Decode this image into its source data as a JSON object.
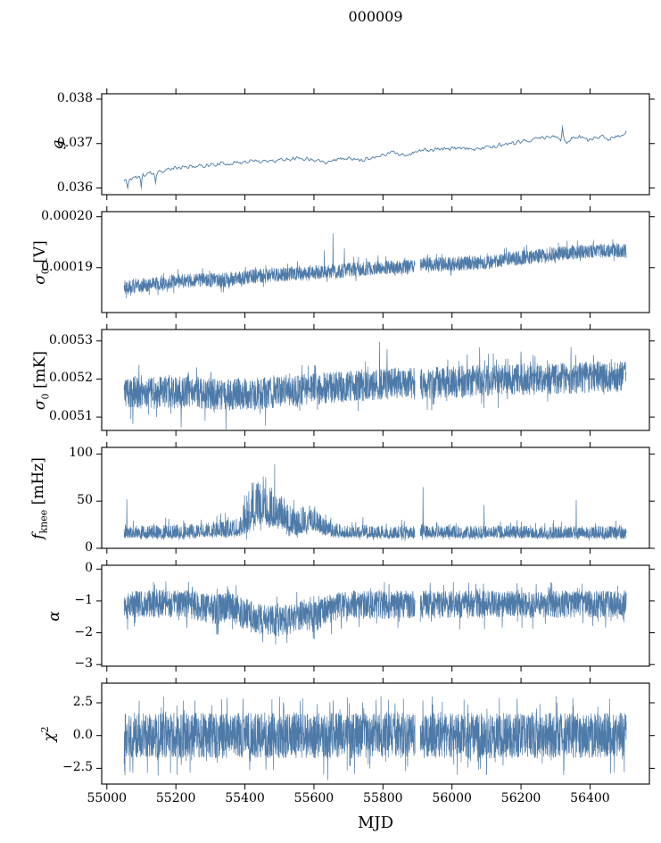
{
  "chart_data": {
    "type": "line",
    "title": "000009",
    "xlabel": "MJD",
    "note": "6 stacked time-series panels sharing MJD x-axis; dense noisy traces encoded as trend + noise envelope + spikes, values estimated from pixels",
    "line_color": "#4d7aa8",
    "axis_color": "#000000",
    "xlim": [
      54985,
      56572
    ],
    "x_data_range": [
      55050,
      56505
    ],
    "xticks": [
      {
        "v": 55000,
        "label": "55000"
      },
      {
        "v": 55200,
        "label": "55200"
      },
      {
        "v": 55400,
        "label": "55400"
      },
      {
        "v": 55600,
        "label": "55600"
      },
      {
        "v": 55800,
        "label": "55800"
      },
      {
        "v": 56000,
        "label": "56000"
      },
      {
        "v": 56200,
        "label": "56200"
      },
      {
        "v": 56400,
        "label": "56400"
      }
    ],
    "gap_mjd": [
      55893,
      55908
    ],
    "panels": [
      {
        "name": "g",
        "ylabel": {
          "var": "g",
          "sub": "",
          "sup": "",
          "unit": ""
        },
        "ylim": [
          0.03585,
          0.03812
        ],
        "yticks": [
          {
            "v": 0.038,
            "label": "0.038"
          },
          {
            "v": 0.037,
            "label": "0.037"
          },
          {
            "v": 0.036,
            "label": "0.036"
          }
        ],
        "seed": 11,
        "n_points": 560,
        "line_width": 0.9,
        "smooth": true,
        "gap": false,
        "tail_prob": 0.06,
        "asym": [
          1,
          1
        ],
        "trend": [
          [
            55050,
            0.03615
          ],
          [
            55080,
            0.03624
          ],
          [
            55130,
            0.03634
          ],
          [
            55180,
            0.03642
          ],
          [
            55240,
            0.03648
          ],
          [
            55300,
            0.03652
          ],
          [
            55360,
            0.03656
          ],
          [
            55420,
            0.0366
          ],
          [
            55480,
            0.03662
          ],
          [
            55540,
            0.03668
          ],
          [
            55600,
            0.03665
          ],
          [
            55640,
            0.0366
          ],
          [
            55680,
            0.03667
          ],
          [
            55730,
            0.03664
          ],
          [
            55780,
            0.0367
          ],
          [
            55830,
            0.03682
          ],
          [
            55860,
            0.03672
          ],
          [
            55900,
            0.03684
          ],
          [
            55950,
            0.03686
          ],
          [
            56000,
            0.0369
          ],
          [
            56050,
            0.03687
          ],
          [
            56100,
            0.03692
          ],
          [
            56150,
            0.03696
          ],
          [
            56200,
            0.03702
          ],
          [
            56250,
            0.03712
          ],
          [
            56300,
            0.03716
          ],
          [
            56330,
            0.03702
          ],
          [
            56360,
            0.03716
          ],
          [
            56400,
            0.0371
          ],
          [
            56440,
            0.03716
          ],
          [
            56470,
            0.03712
          ],
          [
            56505,
            0.03724
          ]
        ],
        "noise_env": [
          [
            55050,
            0.0001
          ],
          [
            55120,
            7e-05
          ],
          [
            55300,
            6e-05
          ],
          [
            56505,
            6e-05
          ]
        ],
        "spikes": [
          [
            55060,
            0.036
          ],
          [
            55100,
            0.03602
          ],
          [
            55140,
            0.03612
          ],
          [
            56320,
            0.03736
          ]
        ]
      },
      {
        "name": "sigma0_V",
        "ylabel": {
          "var": "σ",
          "sub": "0",
          "sup": "",
          "unit": " [V]"
        },
        "ylim": [
          0.0001812,
          0.000201
        ],
        "yticks": [
          {
            "v": 0.0002,
            "label": "0.00020"
          },
          {
            "v": 0.00019,
            "label": "0.00019"
          }
        ],
        "seed": 22,
        "n_points": 2600,
        "line_width": 0.7,
        "smooth": false,
        "gap": true,
        "tail_prob": 0.05,
        "asym": [
          1,
          1.15
        ],
        "trend": [
          [
            55050,
            0.0001862
          ],
          [
            55120,
            0.0001866
          ],
          [
            55200,
            0.0001872
          ],
          [
            55280,
            0.0001876
          ],
          [
            55340,
            0.0001874
          ],
          [
            55420,
            0.0001882
          ],
          [
            55500,
            0.0001886
          ],
          [
            55560,
            0.0001888
          ],
          [
            55640,
            0.0001891
          ],
          [
            55720,
            0.0001896
          ],
          [
            55800,
            0.0001899
          ],
          [
            55860,
            0.00019
          ],
          [
            55910,
            0.0001906
          ],
          [
            55980,
            0.0001906
          ],
          [
            56060,
            0.0001908
          ],
          [
            56120,
            0.0001911
          ],
          [
            56160,
            0.0001917
          ],
          [
            56220,
            0.000192
          ],
          [
            56280,
            0.0001924
          ],
          [
            56340,
            0.0001929
          ],
          [
            56400,
            0.0001932
          ],
          [
            56505,
            0.0001932
          ]
        ],
        "noise_env": [
          [
            55050,
            1.3e-06
          ],
          [
            56505,
            1.3e-06
          ]
        ],
        "spikes": [
          [
            55630,
            0.0001934
          ],
          [
            55655,
            0.0001967
          ],
          [
            55688,
            0.0001938
          ]
        ]
      },
      {
        "name": "sigma0_mK",
        "ylabel": {
          "var": "σ",
          "sub": "0",
          "sup": "",
          "unit": " [mK]"
        },
        "ylim": [
          0.005065,
          0.00533
        ],
        "yticks": [
          {
            "v": 0.0053,
            "label": "0.0053"
          },
          {
            "v": 0.0052,
            "label": "0.0052"
          },
          {
            "v": 0.0051,
            "label": "0.0051"
          }
        ],
        "seed": 33,
        "n_points": 2600,
        "line_width": 0.7,
        "smooth": false,
        "gap": true,
        "tail_prob": 0.06,
        "asym": [
          1.05,
          1
        ],
        "trend": [
          [
            55050,
            0.005167
          ],
          [
            55150,
            0.005163
          ],
          [
            55250,
            0.005167
          ],
          [
            55330,
            0.005158
          ],
          [
            55400,
            0.005162
          ],
          [
            55480,
            0.005165
          ],
          [
            55560,
            0.00517
          ],
          [
            55640,
            0.005178
          ],
          [
            55720,
            0.005183
          ],
          [
            55800,
            0.005188
          ],
          [
            55900,
            0.005189
          ],
          [
            56000,
            0.005194
          ],
          [
            56100,
            0.005198
          ],
          [
            56200,
            0.005199
          ],
          [
            56300,
            0.005202
          ],
          [
            56400,
            0.005205
          ],
          [
            56505,
            0.005207
          ]
        ],
        "noise_env": [
          [
            55050,
            4.3e-05
          ],
          [
            55300,
            4e-05
          ],
          [
            55700,
            4.1e-05
          ],
          [
            56505,
            4e-05
          ]
        ],
        "spikes": [
          [
            55075,
            0.005082
          ],
          [
            55215,
            0.005073
          ],
          [
            55345,
            0.005068
          ],
          [
            55460,
            0.005078
          ],
          [
            55790,
            0.005298
          ],
          [
            55812,
            0.005278
          ],
          [
            56080,
            0.005283
          ],
          [
            56200,
            0.005272
          ],
          [
            56345,
            0.005284
          ]
        ]
      },
      {
        "name": "f_knee",
        "ylabel": {
          "var": "f",
          "sub": "knee",
          "sup": "",
          "unit": " [mHz]"
        },
        "ylim": [
          0,
          107
        ],
        "yticks": [
          {
            "v": 100,
            "label": "100"
          },
          {
            "v": 50,
            "label": "50"
          },
          {
            "v": 0,
            "label": "0"
          }
        ],
        "seed": 44,
        "n_points": 2600,
        "line_width": 0.7,
        "smooth": false,
        "gap": true,
        "tail_prob": 0.06,
        "asym": [
          0.6,
          1.6
        ],
        "trend": [
          [
            55050,
            14
          ],
          [
            55200,
            15
          ],
          [
            55290,
            16
          ],
          [
            55340,
            16
          ],
          [
            55380,
            18
          ],
          [
            55405,
            26
          ],
          [
            55425,
            36
          ],
          [
            55445,
            40
          ],
          [
            55465,
            38
          ],
          [
            55485,
            34
          ],
          [
            55505,
            30
          ],
          [
            55525,
            25
          ],
          [
            55545,
            20
          ],
          [
            55565,
            23
          ],
          [
            55585,
            27
          ],
          [
            55605,
            25
          ],
          [
            55625,
            20
          ],
          [
            55645,
            17
          ],
          [
            55690,
            15
          ],
          [
            55750,
            15
          ],
          [
            55850,
            14
          ],
          [
            55950,
            15
          ],
          [
            56050,
            14
          ],
          [
            56150,
            15
          ],
          [
            56250,
            14
          ],
          [
            56350,
            14
          ],
          [
            56505,
            14
          ]
        ],
        "noise_env": [
          [
            55050,
            6
          ],
          [
            55300,
            7
          ],
          [
            55380,
            9
          ],
          [
            55415,
            22
          ],
          [
            55445,
            24
          ],
          [
            55475,
            22
          ],
          [
            55510,
            17
          ],
          [
            55545,
            12
          ],
          [
            55575,
            13
          ],
          [
            55605,
            12
          ],
          [
            55640,
            8
          ],
          [
            55680,
            6
          ],
          [
            56505,
            6
          ]
        ],
        "spikes": [
          [
            55058,
            52
          ],
          [
            55330,
            37
          ],
          [
            55352,
            33
          ],
          [
            55742,
            33
          ],
          [
            55862,
            29
          ],
          [
            55916,
            65
          ],
          [
            55955,
            27
          ],
          [
            56093,
            46
          ],
          [
            56170,
            27
          ],
          [
            56360,
            51
          ],
          [
            56430,
            23
          ]
        ]
      },
      {
        "name": "alpha",
        "ylabel": {
          "var": "α",
          "sub": "",
          "sup": "",
          "unit": ""
        },
        "ylim": [
          -3.05,
          0.12
        ],
        "yticks": [
          {
            "v": 0,
            "label": "0"
          },
          {
            "v": -1,
            "label": "−1"
          },
          {
            "v": -2,
            "label": "−2"
          },
          {
            "v": -3,
            "label": "−3"
          }
        ],
        "seed": 55,
        "n_points": 2600,
        "line_width": 0.7,
        "smooth": false,
        "gap": true,
        "tail_prob": 0.06,
        "asym": [
          1.25,
          1
        ],
        "trend": [
          [
            55050,
            -1.05
          ],
          [
            55240,
            -1.05
          ],
          [
            55285,
            -1.18
          ],
          [
            55320,
            -1.22
          ],
          [
            55350,
            -1.1
          ],
          [
            55385,
            -1.28
          ],
          [
            55420,
            -1.45
          ],
          [
            55460,
            -1.55
          ],
          [
            55500,
            -1.58
          ],
          [
            55540,
            -1.52
          ],
          [
            55570,
            -1.35
          ],
          [
            55600,
            -1.48
          ],
          [
            55630,
            -1.28
          ],
          [
            55665,
            -1.12
          ],
          [
            55710,
            -1.07
          ],
          [
            56505,
            -1.05
          ]
        ],
        "noise_env": [
          [
            55050,
            0.37
          ],
          [
            55280,
            0.42
          ],
          [
            55420,
            0.44
          ],
          [
            55560,
            0.44
          ],
          [
            55660,
            0.4
          ],
          [
            56505,
            0.37
          ]
        ],
        "spikes": [
          [
            55060,
            -1.9
          ],
          [
            55322,
            -2.05
          ],
          [
            55452,
            -2.3
          ],
          [
            55522,
            -2.32
          ],
          [
            55598,
            -2.18
          ]
        ]
      },
      {
        "name": "chi2",
        "ylabel": {
          "var": "χ",
          "sub": "",
          "sup": "2",
          "unit": ""
        },
        "ylim": [
          -3.7,
          4.0
        ],
        "yticks": [
          {
            "v": 2.5,
            "label": "2.5"
          },
          {
            "v": 0,
            "label": "0.0"
          },
          {
            "v": -2.5,
            "label": "−2.5"
          }
        ],
        "seed": 66,
        "n_points": 3000,
        "line_width": 0.7,
        "smooth": false,
        "gap": true,
        "tail_prob": 0.07,
        "asym": [
          1.2,
          1.2
        ],
        "trend": [
          [
            55050,
            0
          ],
          [
            56505,
            0
          ]
        ],
        "noise_env": [
          [
            55050,
            1.45
          ],
          [
            56505,
            1.45
          ]
        ],
        "spikes": [
          [
            55075,
            -2.85
          ],
          [
            55500,
            2.95
          ],
          [
            55640,
            -3.4
          ],
          [
            56100,
            -3.0
          ],
          [
            56350,
            2.85
          ],
          [
            56460,
            -2.9
          ]
        ]
      }
    ]
  }
}
